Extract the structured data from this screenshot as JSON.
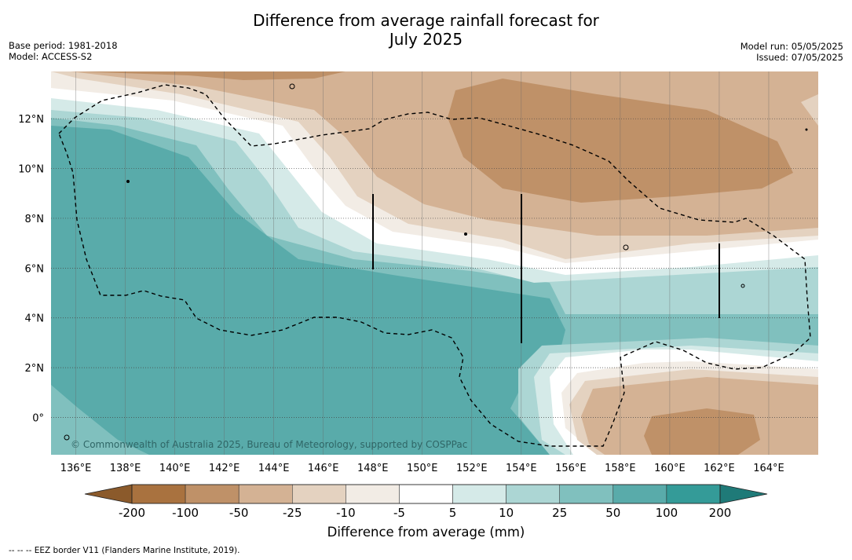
{
  "header": {
    "title_line1": "Difference from average rainfall forecast for",
    "title_line2": "July 2025",
    "base_period": "Base period: 1981-2018",
    "model": "Model: ACCESS-S2",
    "model_run": "Model run: 05/05/2025",
    "issued": "Issued: 07/05/2025"
  },
  "map": {
    "lon_ticks": [
      "136°E",
      "138°E",
      "140°E",
      "142°E",
      "144°E",
      "146°E",
      "148°E",
      "150°E",
      "152°E",
      "154°E",
      "156°E",
      "158°E",
      "160°E",
      "162°E",
      "164°E"
    ],
    "lat_ticks": [
      "12°N",
      "10°N",
      "8°N",
      "6°N",
      "4°N",
      "2°N",
      "0°"
    ],
    "lon_range": [
      135,
      166
    ],
    "lat_range": [
      -1.5,
      13.9
    ],
    "copyright": "© Commonwealth of Australia 2025, Bureau of Meteorology, supported by COSPPac",
    "grid": "on"
  },
  "colorbar": {
    "levels": [
      "-200",
      "-100",
      "-50",
      "-25",
      "-10",
      "-5",
      "5",
      "10",
      "25",
      "50",
      "100",
      "200"
    ],
    "colors": [
      "#8b5a2b",
      "#a9723f",
      "#bf9168",
      "#d4b294",
      "#e4d2c0",
      "#f2ece5",
      "#ffffff",
      "#d5eae8",
      "#acd6d4",
      "#80c0be",
      "#59abaa",
      "#349b98",
      "#1f7a78"
    ],
    "label": "Difference from average (mm)"
  },
  "footnote": "--  --  -- EEZ border V11 (Flanders Marine Institute, 2019)."
}
